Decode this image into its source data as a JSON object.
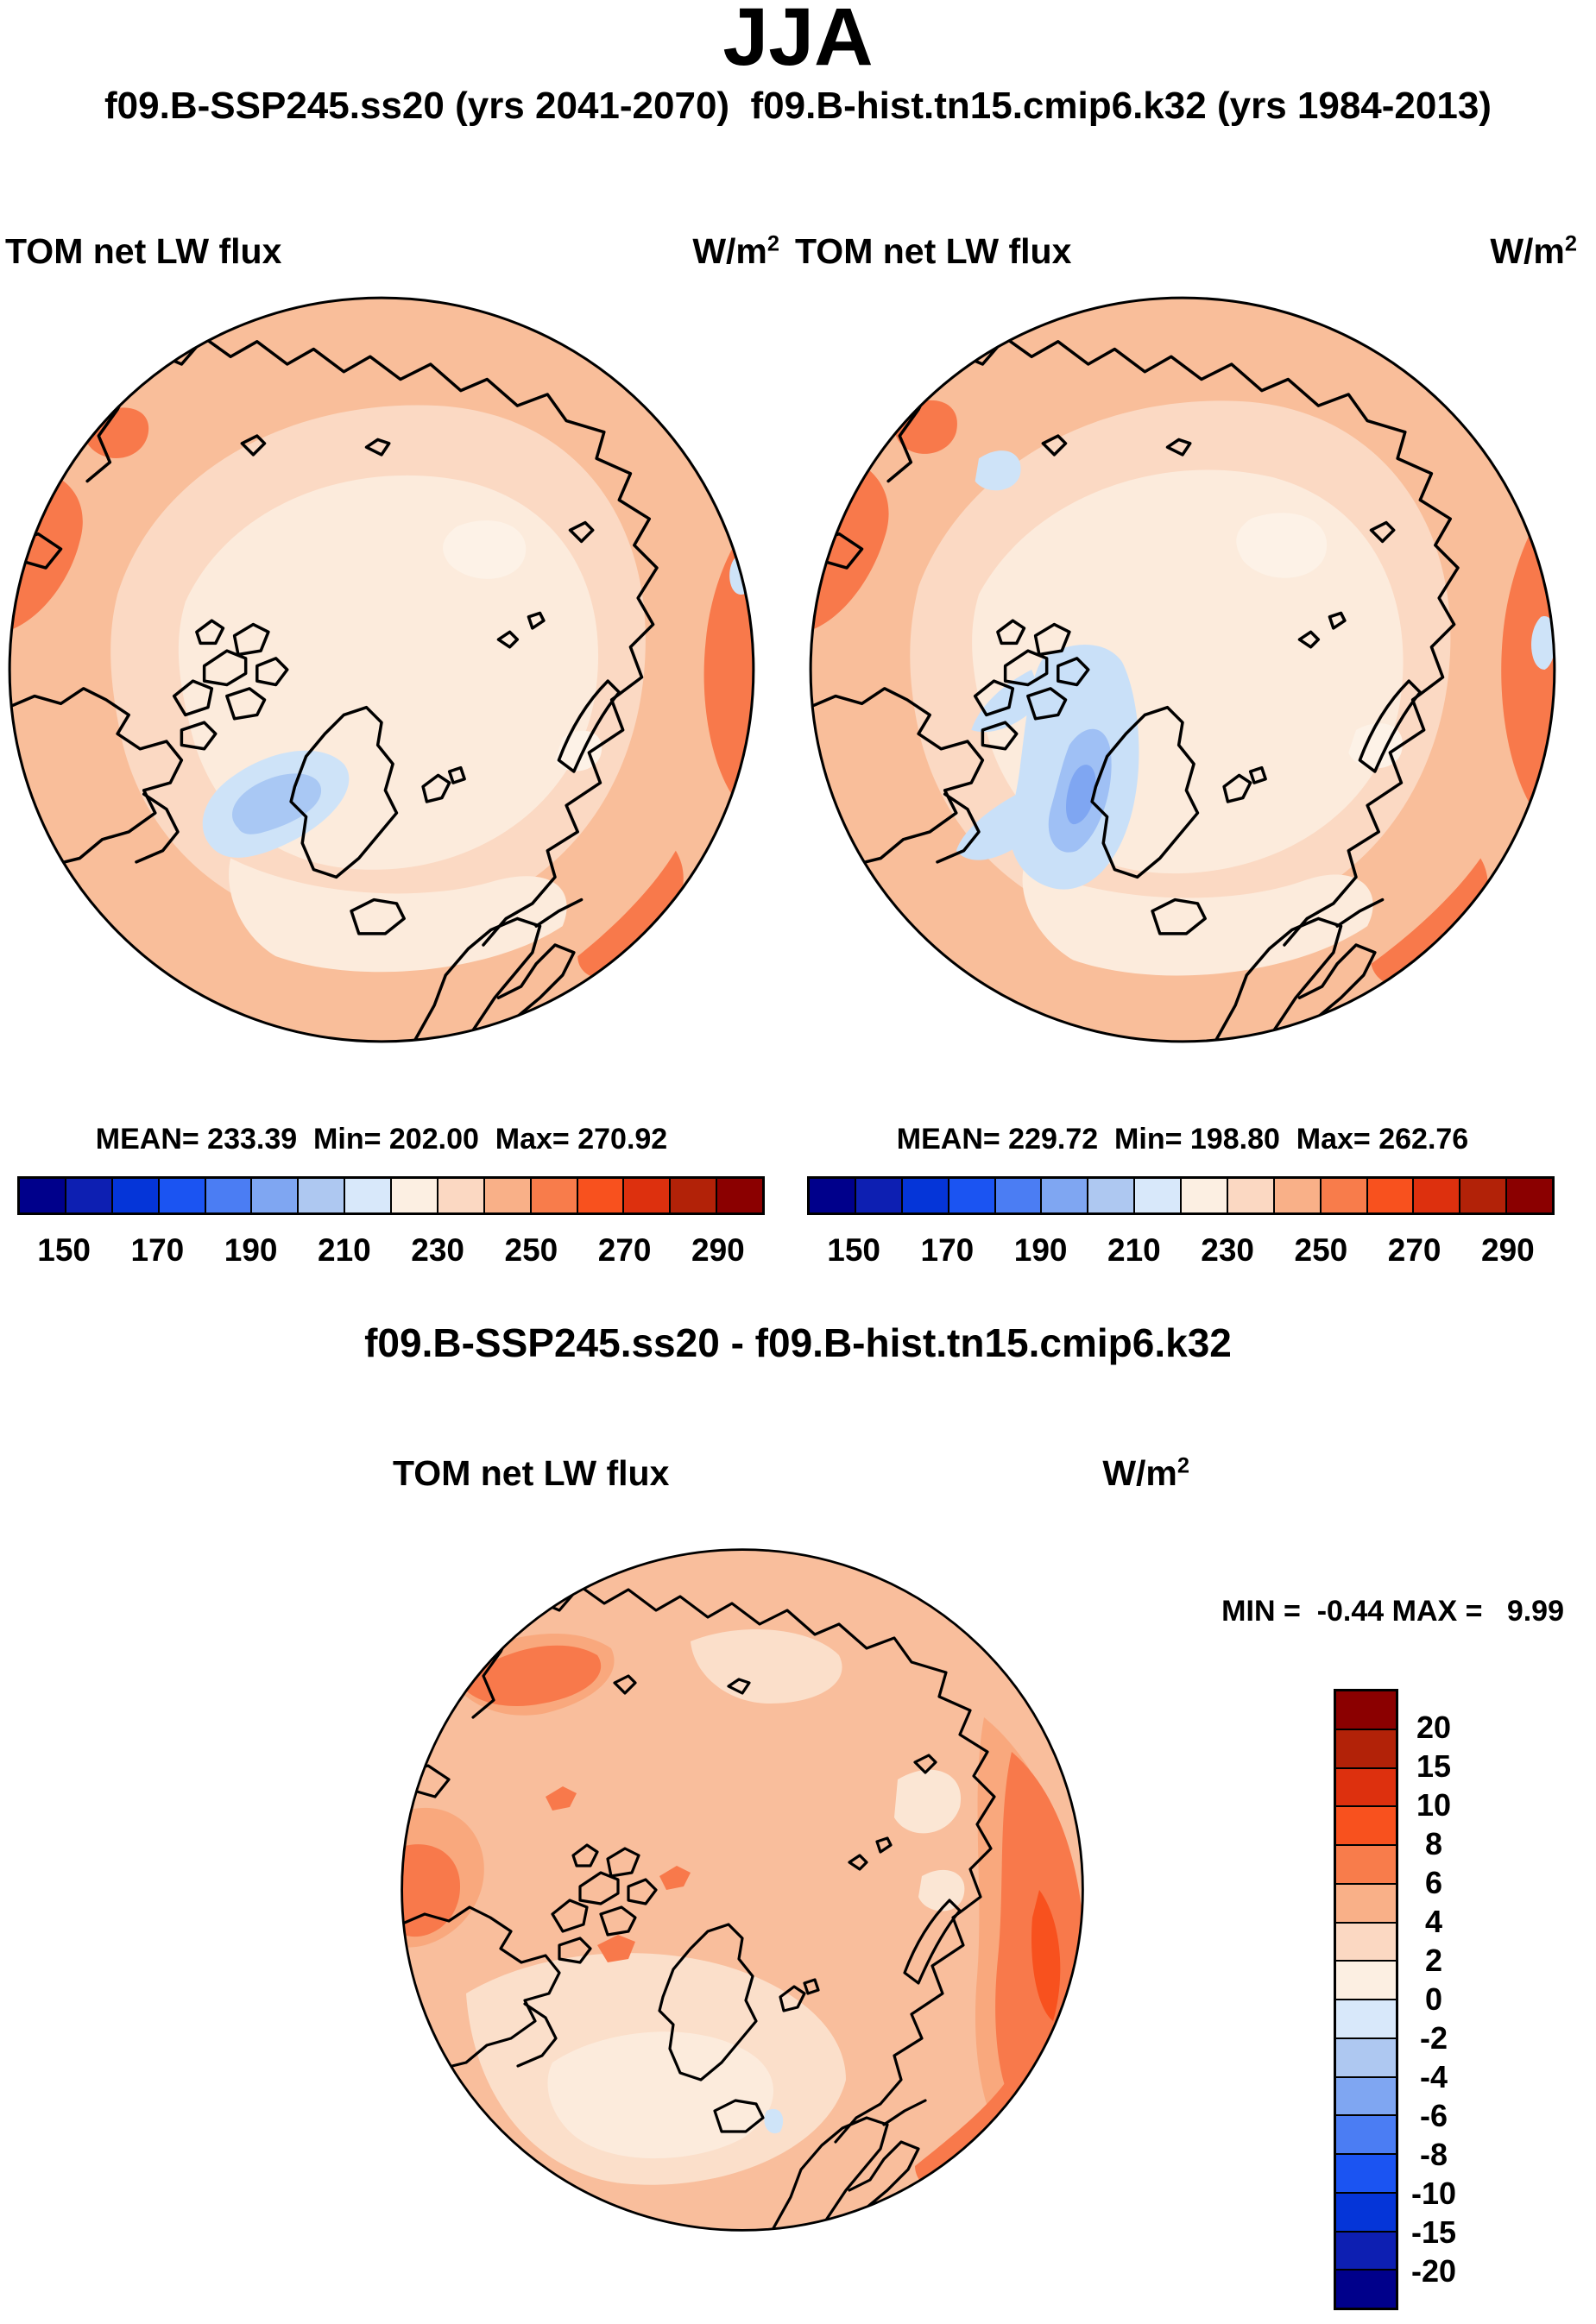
{
  "title": "JJA",
  "subtitle": "f09.B-SSP245.ss20 (yrs 2041-2070)  f09.B-hist.tn15.cmip6.k32 (yrs 1984-2013)",
  "panels": {
    "a": {
      "label": "TOM net LW flux",
      "units_base": "W/m",
      "units_exp": "2",
      "stats": "MEAN= 233.39  Min= 202.00  Max= 270.92"
    },
    "b": {
      "label": "TOM net LW flux",
      "units_base": "W/m",
      "units_exp": "2",
      "stats": "MEAN= 229.72  Min= 198.80  Max= 262.76"
    },
    "diff": {
      "title": "f09.B-SSP245.ss20 - f09.B-hist.tn15.cmip6.k32",
      "label": "TOM net LW flux",
      "units_base": "W/m",
      "units_exp": "2",
      "minmax": "MIN =  -0.44 MAX =   9.99"
    }
  },
  "chart_data": [
    {
      "type": "heatmap",
      "projection": "north_polar_stereographic",
      "season": "JJA",
      "case": "f09.B-SSP245.ss20",
      "years": "yrs 2041-2070",
      "title": "TOM net LW flux",
      "units": "W/m2",
      "stats": {
        "mean": 233.39,
        "min": 202.0,
        "max": 270.92
      },
      "colorbar": {
        "orientation": "horizontal",
        "segment_count": 16,
        "tick_labels": [
          "150",
          "170",
          "190",
          "210",
          "230",
          "250",
          "270",
          "290"
        ],
        "colors": [
          "#00008B",
          "#0D1FB2",
          "#0535D8",
          "#1B54F2",
          "#4B7DF3",
          "#7FA6F2",
          "#AEC8F1",
          "#D8E8FA",
          "#FCEFE2",
          "#FBD8C2",
          "#F9B088",
          "#F87C4B",
          "#F8511E",
          "#DD300E",
          "#B22208",
          "#8B0000"
        ]
      }
    },
    {
      "type": "heatmap",
      "projection": "north_polar_stereographic",
      "season": "JJA",
      "case": "f09.B-hist.tn15.cmip6.k32",
      "years": "yrs 1984-2013",
      "title": "TOM net LW flux",
      "units": "W/m2",
      "stats": {
        "mean": 229.72,
        "min": 198.8,
        "max": 262.76
      },
      "colorbar": {
        "orientation": "horizontal",
        "segment_count": 16,
        "tick_labels": [
          "150",
          "170",
          "190",
          "210",
          "230",
          "250",
          "270",
          "290"
        ],
        "colors": [
          "#00008B",
          "#0D1FB2",
          "#0535D8",
          "#1B54F2",
          "#4B7DF3",
          "#7FA6F2",
          "#AEC8F1",
          "#D8E8FA",
          "#FCEFE2",
          "#FBD8C2",
          "#F9B088",
          "#F87C4B",
          "#F8511E",
          "#DD300E",
          "#B22208",
          "#8B0000"
        ]
      }
    },
    {
      "type": "heatmap",
      "projection": "north_polar_stereographic",
      "season": "JJA",
      "case": "f09.B-SSP245.ss20 - f09.B-hist.tn15.cmip6.k32",
      "title": "TOM net LW flux",
      "units": "W/m2",
      "stats": {
        "min": -0.44,
        "max": 9.99
      },
      "colorbar": {
        "orientation": "vertical",
        "segment_count": 16,
        "tick_labels": [
          "20",
          "15",
          "10",
          "8",
          "6",
          "4",
          "2",
          "0",
          "-2",
          "-4",
          "-6",
          "-8",
          "-10",
          "-15",
          "-20"
        ],
        "colors": [
          "#8B0000",
          "#B22208",
          "#DD300E",
          "#F8511E",
          "#F87C4B",
          "#F9B088",
          "#FBD8C2",
          "#FCEFE2",
          "#D8E8FA",
          "#AEC8F1",
          "#7FA6F2",
          "#4B7DF3",
          "#1B54F2",
          "#0535D8",
          "#0D1FB2",
          "#00008B"
        ]
      }
    }
  ]
}
